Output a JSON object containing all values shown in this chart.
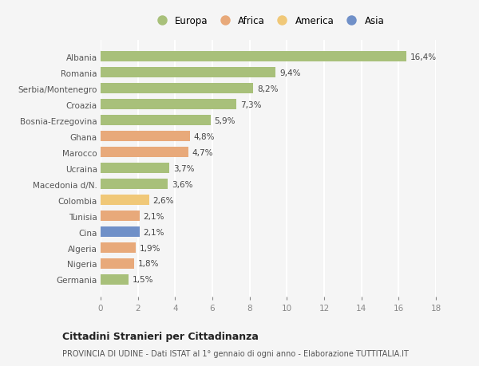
{
  "categories": [
    "Albania",
    "Romania",
    "Serbia/Montenegro",
    "Croazia",
    "Bosnia-Erzegovina",
    "Ghana",
    "Marocco",
    "Ucraina",
    "Macedonia d/N.",
    "Colombia",
    "Tunisia",
    "Cina",
    "Algeria",
    "Nigeria",
    "Germania"
  ],
  "values": [
    16.4,
    9.4,
    8.2,
    7.3,
    5.9,
    4.8,
    4.7,
    3.7,
    3.6,
    2.6,
    2.1,
    2.1,
    1.9,
    1.8,
    1.5
  ],
  "labels": [
    "16,4%",
    "9,4%",
    "8,2%",
    "7,3%",
    "5,9%",
    "4,8%",
    "4,7%",
    "3,7%",
    "3,6%",
    "2,6%",
    "2,1%",
    "2,1%",
    "1,9%",
    "1,8%",
    "1,5%"
  ],
  "colors": [
    "#a8c07a",
    "#a8c07a",
    "#a8c07a",
    "#a8c07a",
    "#a8c07a",
    "#e8a97a",
    "#e8a97a",
    "#a8c07a",
    "#a8c07a",
    "#f0c878",
    "#e8a97a",
    "#7090c8",
    "#e8a97a",
    "#e8a97a",
    "#a8c07a"
  ],
  "legend": [
    {
      "label": "Europa",
      "color": "#a8c07a"
    },
    {
      "label": "Africa",
      "color": "#e8a97a"
    },
    {
      "label": "America",
      "color": "#f0c878"
    },
    {
      "label": "Asia",
      "color": "#7090c8"
    }
  ],
  "xlim": [
    0,
    18
  ],
  "xticks": [
    0,
    2,
    4,
    6,
    8,
    10,
    12,
    14,
    16,
    18
  ],
  "title": "Cittadini Stranieri per Cittadinanza",
  "subtitle": "PROVINCIA DI UDINE - Dati ISTAT al 1° gennaio di ogni anno - Elaborazione TUTTITALIA.IT",
  "background_color": "#f5f5f5",
  "grid_color": "#ffffff",
  "bar_height": 0.65
}
